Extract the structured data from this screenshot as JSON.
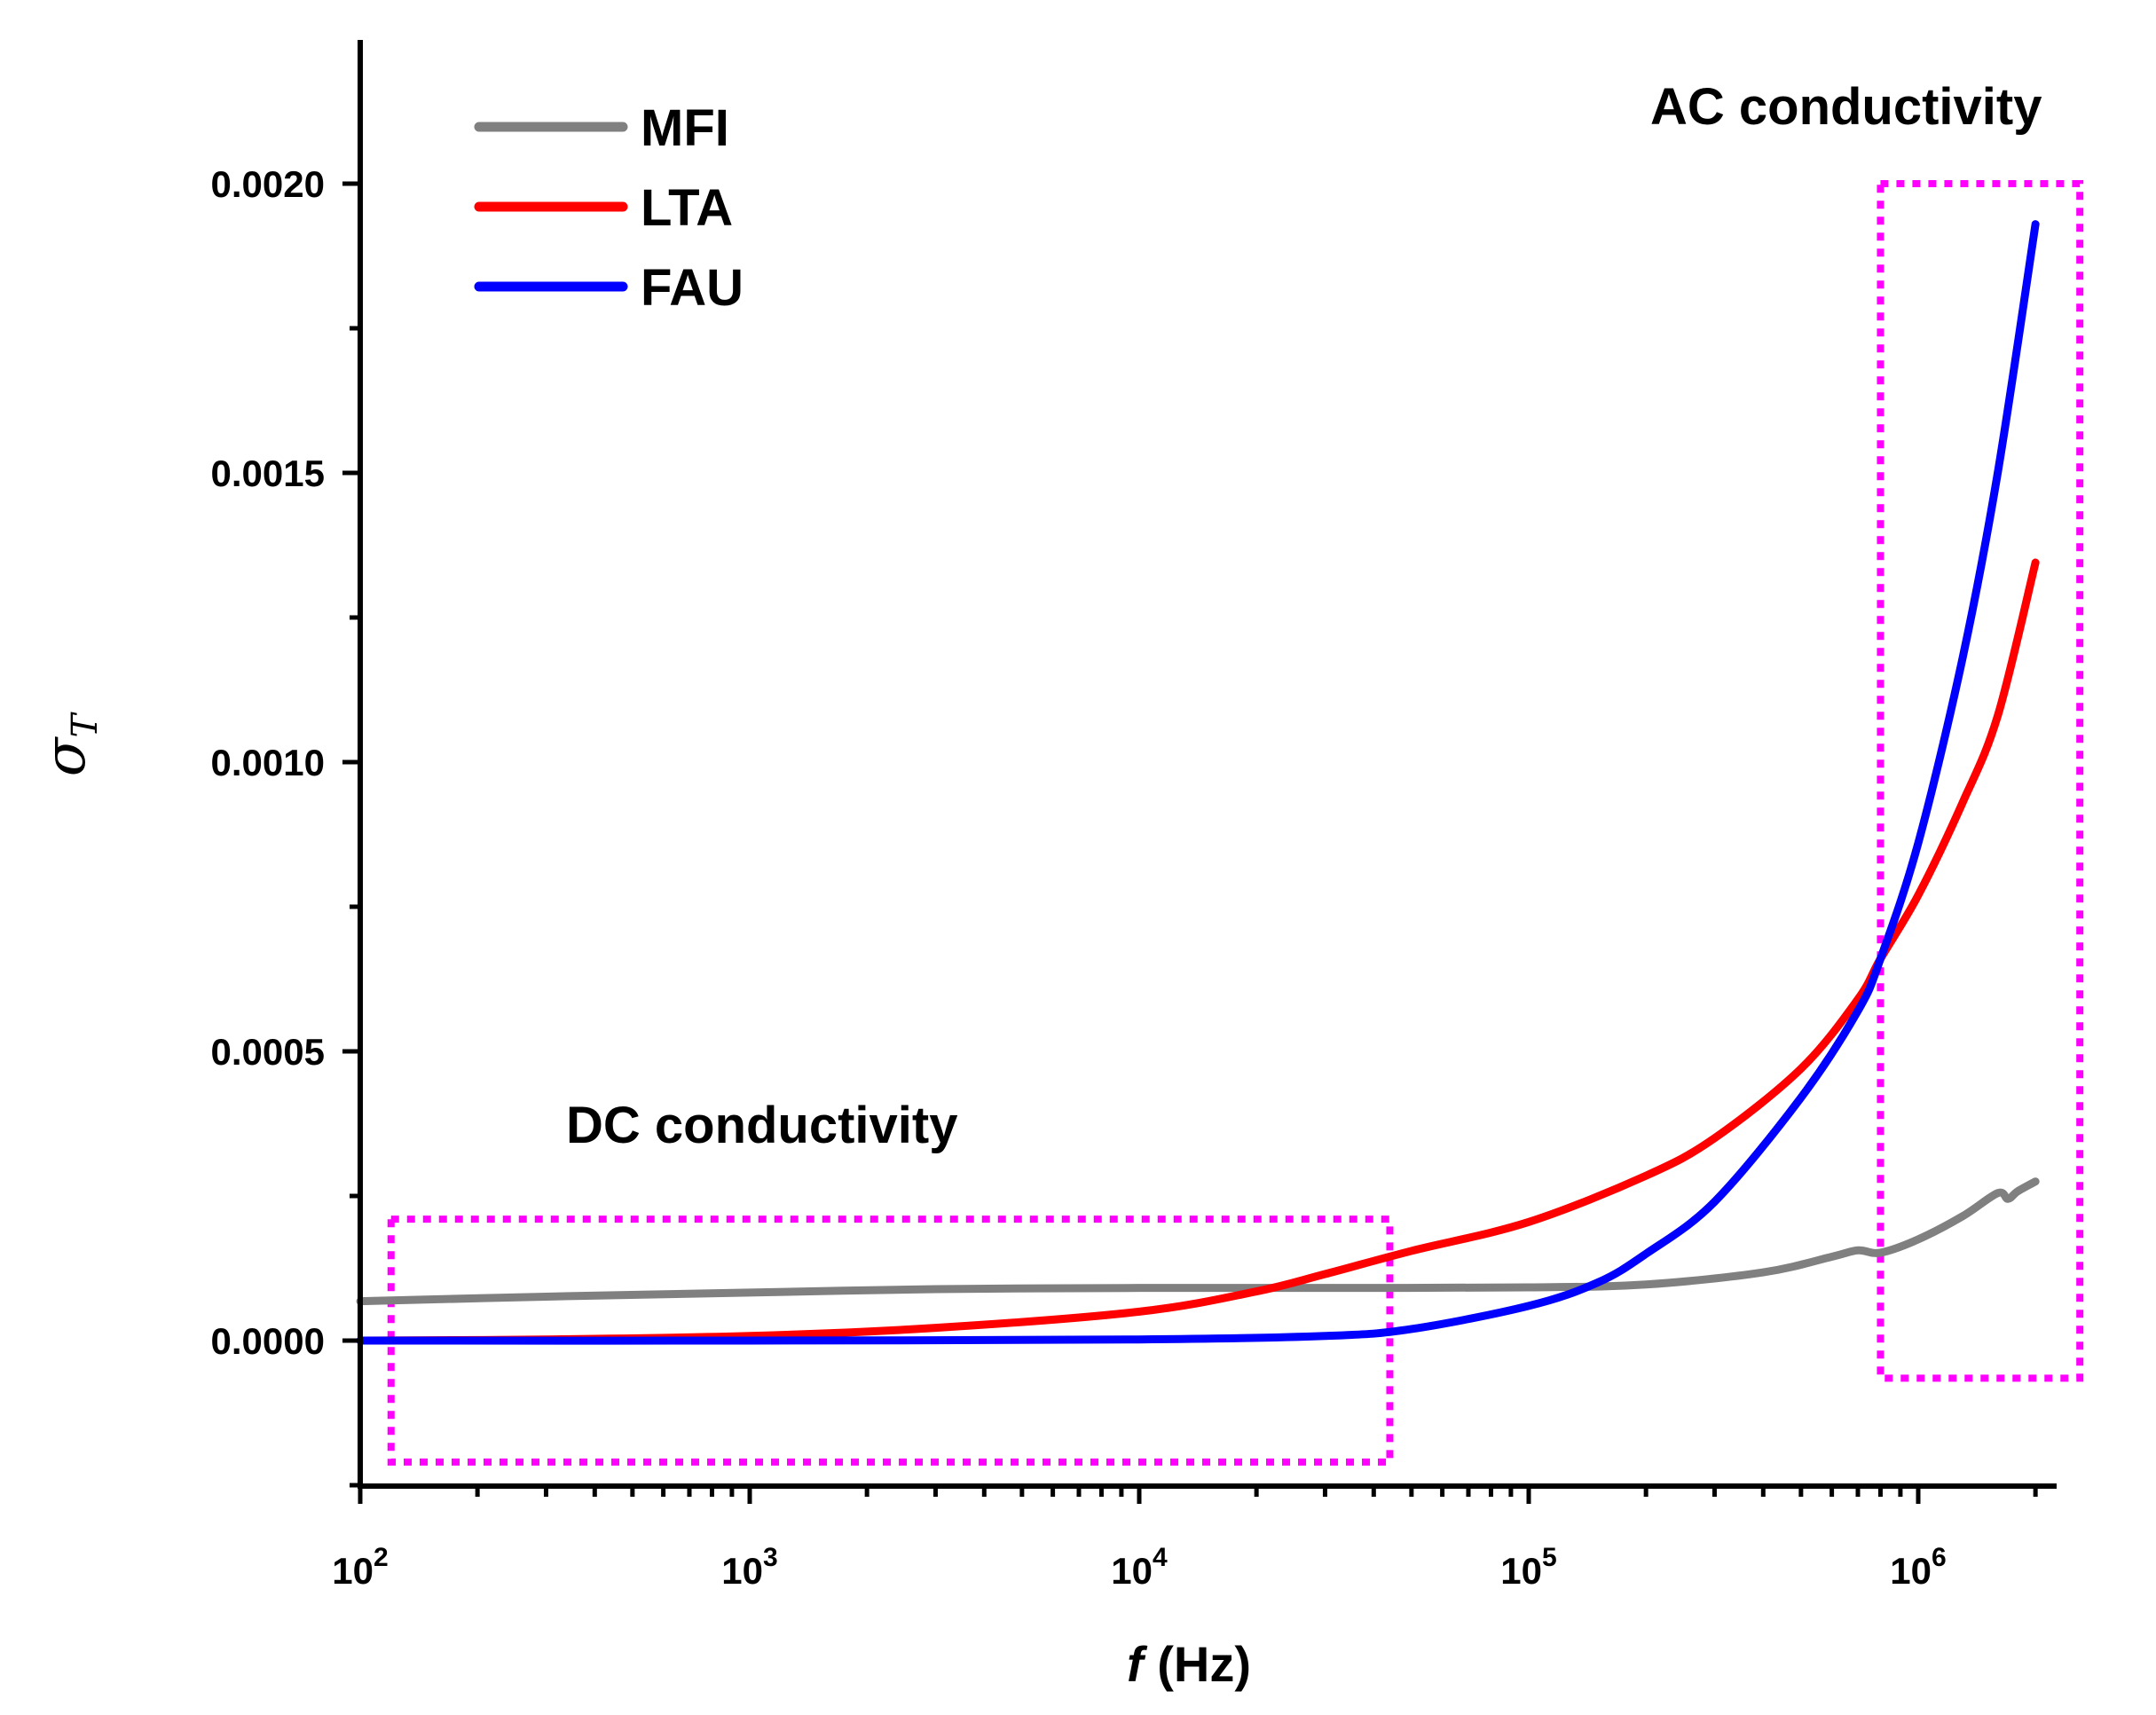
{
  "chart_data": {
    "type": "line",
    "title": "",
    "xlabel": {
      "italic": "f",
      "rest": " (Hz)"
    },
    "ylabel": {
      "symbol": "σ",
      "subscript": "T"
    },
    "xscale": "log",
    "xlim": [
      100,
      2300000
    ],
    "ylim": [
      -0.00025,
      0.00225
    ],
    "x_ticks": [
      {
        "base": "10",
        "exp": "2"
      },
      {
        "base": "10",
        "exp": "3"
      },
      {
        "base": "10",
        "exp": "4"
      },
      {
        "base": "10",
        "exp": "5"
      },
      {
        "base": "10",
        "exp": "6"
      }
    ],
    "y_ticks": [
      "0.0000",
      "0.0005",
      "0.0010",
      "0.0015",
      "0.0020"
    ],
    "legend_position": "top-left",
    "series": [
      {
        "name": "MFI",
        "color": "#808080",
        "x": [
          100,
          300,
          1000,
          3000,
          10000,
          30000,
          100000,
          200000,
          400000,
          600000,
          700000,
          800000,
          1000000,
          1300000,
          1600000,
          1700000,
          1800000,
          2000000
        ],
        "y": [
          6.8e-05,
          7.6e-05,
          8.3e-05,
          8.9e-05,
          9.1e-05,
          9.1e-05,
          9.2e-05,
          9.7e-05,
          0.000118,
          0.000145,
          0.000156,
          0.000152,
          0.000175,
          0.000215,
          0.000255,
          0.000245,
          0.000258,
          0.000275
        ]
      },
      {
        "name": "LTA",
        "color": "#ff0000",
        "x": [
          100,
          300,
          1000,
          3000,
          10000,
          20000,
          30000,
          50000,
          100000,
          200000,
          300000,
          500000,
          700000,
          800000,
          1000000,
          1300000,
          1600000,
          2000000
        ],
        "y": [
          0.0,
          2e-06,
          8e-06,
          2.2e-05,
          5e-05,
          8.5e-05,
          0.000115,
          0.000155,
          0.000205,
          0.000285,
          0.00035,
          0.00047,
          0.00059,
          0.00066,
          0.00077,
          0.00093,
          0.00108,
          0.001345
        ]
      },
      {
        "name": "FAU",
        "color": "#0000ff",
        "x": [
          100,
          1000,
          10000,
          30000,
          50000,
          100000,
          150000,
          200000,
          300000,
          500000,
          700000,
          800000,
          1000000,
          1300000,
          1600000,
          2000000
        ],
        "y": [
          0.0,
          0.0,
          2e-06,
          8e-06,
          2e-05,
          6e-05,
          0.0001,
          0.00015,
          0.00024,
          0.00042,
          0.00057,
          0.00066,
          0.00086,
          0.00118,
          0.0015,
          0.00193
        ]
      }
    ],
    "annotations": [
      {
        "text": "DC conductivity",
        "box": {
          "x_range": [
            120,
            44000
          ],
          "y_range": [
            -0.00021,
            0.00021
          ]
        }
      },
      {
        "text": "AC conductivity",
        "box": {
          "x_range": [
            800000,
            2600000
          ],
          "y_range": [
            -6.5e-05,
            0.002
          ]
        }
      }
    ]
  }
}
